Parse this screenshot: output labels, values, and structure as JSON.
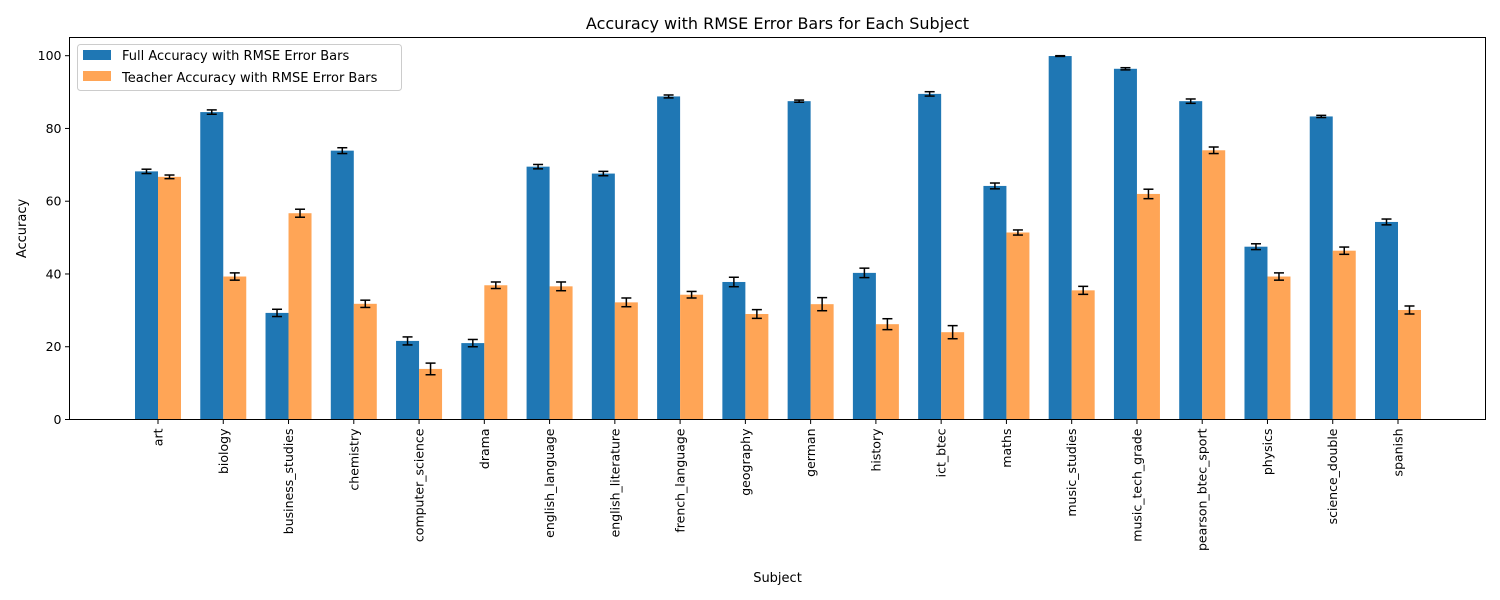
{
  "chart_data": {
    "type": "bar",
    "title": "Accuracy with RMSE Error Bars for Each Subject",
    "xlabel": "Subject",
    "ylabel": "Accuracy",
    "ylim": [
      0,
      105
    ],
    "yticks": [
      0,
      20,
      40,
      60,
      80,
      100
    ],
    "grid": false,
    "legend_position": "top-left",
    "categories": [
      "art",
      "biology",
      "business_studies",
      "chemistry",
      "computer_science",
      "drama",
      "english_language",
      "english_literature",
      "french_language",
      "geography",
      "german",
      "history",
      "ict_btec",
      "maths",
      "music_studies",
      "music_tech_grade",
      "pearson_btec_sport",
      "physics",
      "science_double",
      "spanish"
    ],
    "series": [
      {
        "name": "Full Accuracy with RMSE Error Bars",
        "color": "#1f77b4",
        "values": [
          68.2,
          84.5,
          29.3,
          73.9,
          21.6,
          21.0,
          69.5,
          67.6,
          88.8,
          37.8,
          87.5,
          40.3,
          89.5,
          64.2,
          99.9,
          96.4,
          87.5,
          47.5,
          83.3,
          54.3
        ],
        "errors": [
          0.6,
          0.6,
          1.0,
          0.8,
          1.1,
          1.0,
          0.6,
          0.6,
          0.4,
          1.3,
          0.3,
          1.3,
          0.6,
          0.8,
          0.1,
          0.3,
          0.6,
          0.8,
          0.3,
          0.8
        ]
      },
      {
        "name": "Teacher Accuracy with RMSE Error Bars",
        "color": "#ffa556",
        "values": [
          66.7,
          39.3,
          56.7,
          31.8,
          13.9,
          36.9,
          36.6,
          32.2,
          34.3,
          29.0,
          31.7,
          26.2,
          24.0,
          51.4,
          35.5,
          62.0,
          74.0,
          39.3,
          46.4,
          30.1
        ],
        "errors": [
          0.5,
          1.0,
          1.1,
          1.0,
          1.6,
          0.9,
          1.2,
          1.2,
          0.9,
          1.2,
          1.8,
          1.5,
          1.8,
          0.7,
          1.1,
          1.3,
          0.9,
          1.0,
          1.0,
          1.1
        ]
      }
    ]
  }
}
